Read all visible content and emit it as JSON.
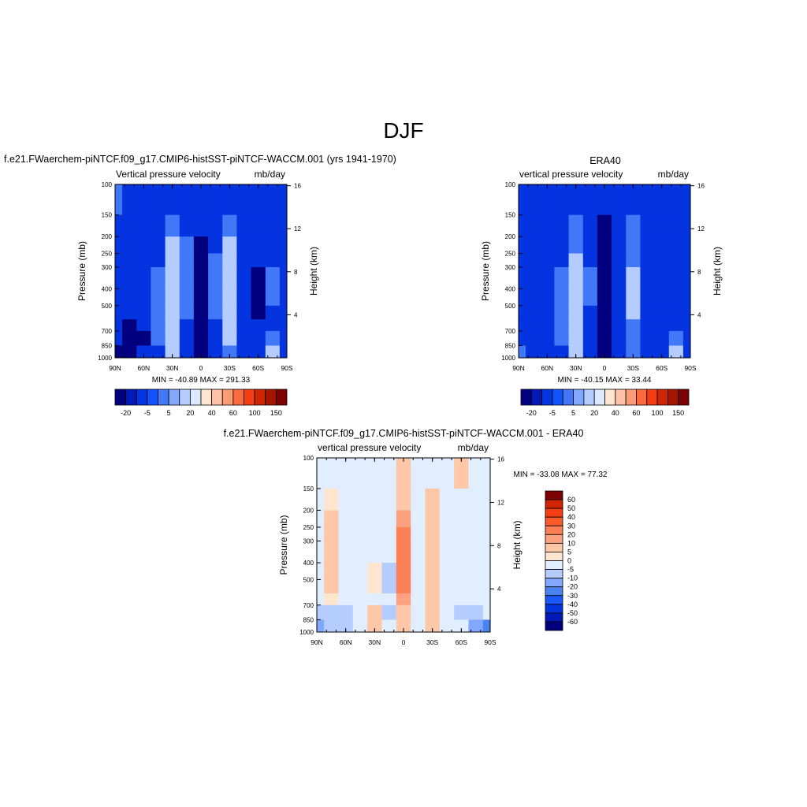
{
  "figure": {
    "season": "DJF"
  },
  "chart_data": [
    {
      "type": "heatmap",
      "title": "f.e21.FWaerchem-piNTCF.f09_g17.CMIP6-histSST-piNTCF-WACCM.001 (yrs 1941-1970)",
      "left_label": "Vertical pressure velocity",
      "right_label": "mb/day",
      "xlabel": "",
      "ylabel": "Pressure (mb)",
      "ylabel_right": "Height (km)",
      "x_ticks": [
        "90N",
        "60N",
        "30N",
        "0",
        "30S",
        "60S",
        "90S"
      ],
      "y_ticks": [
        "100",
        "150",
        "200",
        "250",
        "300",
        "400",
        "500",
        "700",
        "850",
        "1000"
      ],
      "y_right_ticks": [
        "16",
        "12",
        "8",
        "4"
      ],
      "stats": "MIN = -40.89  MAX = 291.33",
      "colorbar": {
        "levels": [
          "-20",
          "-5",
          "5",
          "20",
          "40",
          "60",
          "100",
          "150"
        ],
        "colors": [
          "#02007f",
          "#0019b7",
          "#0433e0",
          "#1352ff",
          "#4078f7",
          "#82a7ff",
          "#b4ccff",
          "#dceaff",
          "#fde5d0",
          "#fdc2a5",
          "#fc9c72",
          "#fb6a3f",
          "#f23e12",
          "#cf2505",
          "#a61500",
          "#7f0202"
        ]
      },
      "field_columns": [
        {
          "lat": 90,
          "levels": [
            "-5",
            "-10",
            "-10",
            "-10",
            "-10",
            "-10",
            "-10",
            "-10",
            "-20",
            "-30",
            "-30"
          ]
        },
        {
          "lat": 75,
          "levels": [
            "-10",
            "-10",
            "-10",
            "-20",
            "-20",
            "-20",
            "-20",
            "-30",
            "-40",
            "-30",
            "-5"
          ]
        },
        {
          "lat": 60,
          "levels": [
            "-10",
            "-10",
            "-10",
            "-10",
            "-10",
            "-10",
            "-10",
            "-20",
            "-30",
            "-20",
            "-10"
          ]
        },
        {
          "lat": 45,
          "levels": [
            "-10",
            "-10",
            "-10",
            "-10",
            "-5",
            "-5",
            "-5",
            "-5",
            "-5",
            "-10",
            "-10"
          ]
        },
        {
          "lat": 30,
          "levels": [
            "-10",
            "-5",
            "5",
            "10",
            "15",
            "15",
            "15",
            "10",
            "10",
            "5",
            "-5"
          ]
        },
        {
          "lat": 15,
          "levels": [
            "-10",
            "-10",
            "-5",
            "-5",
            "0",
            "0",
            "-5",
            "-10",
            "-20",
            "-20",
            "-10"
          ]
        },
        {
          "lat": 0,
          "levels": [
            "-10",
            "-20",
            "-30",
            "-40",
            "-40",
            "-40",
            "-40",
            "-40",
            "-40",
            "-40",
            "-30"
          ]
        },
        {
          "lat": -15,
          "levels": [
            "-10",
            "-10",
            "-10",
            "-5",
            "-5",
            "-5",
            "-5",
            "-10",
            "-10",
            "-10",
            "-10"
          ]
        },
        {
          "lat": -30,
          "levels": [
            "-10",
            "-5",
            "5",
            "5",
            "5",
            "5",
            "5",
            "5",
            "5",
            "0",
            "-5"
          ]
        },
        {
          "lat": -45,
          "levels": [
            "-10",
            "-10",
            "-10",
            "-20",
            "-20",
            "-20",
            "-20",
            "-20",
            "-20",
            "-20",
            "-10"
          ]
        },
        {
          "lat": -60,
          "levels": [
            "-10",
            "-10",
            "-10",
            "-20",
            "-30",
            "-30",
            "-30",
            "-20",
            "-20",
            "-10",
            "-5"
          ]
        },
        {
          "lat": -75,
          "levels": [
            "-10",
            "-10",
            "-10",
            "-10",
            "-5",
            "-5",
            "-10",
            "-10",
            "-5",
            "5",
            "10"
          ]
        },
        {
          "lat": -90,
          "levels": [
            "-10",
            "-10",
            "-10",
            "-10",
            "-10",
            "-10",
            "-10",
            "-10",
            "-20",
            "-20",
            "-10"
          ]
        }
      ]
    },
    {
      "type": "heatmap",
      "title": "ERA40",
      "left_label": "vertical pressure velocity",
      "right_label": "mb/day",
      "xlabel": "",
      "ylabel": "Pressure (mb)",
      "ylabel_right": "Height (km)",
      "x_ticks": [
        "90N",
        "60N",
        "30N",
        "0",
        "30S",
        "60S",
        "90S"
      ],
      "y_ticks": [
        "100",
        "150",
        "200",
        "250",
        "300",
        "400",
        "500",
        "700",
        "850",
        "1000"
      ],
      "y_right_ticks": [
        "16",
        "12",
        "8",
        "4"
      ],
      "stats": "MIN = -40.15  MAX =  33.44",
      "colorbar": {
        "levels": [
          "-20",
          "-5",
          "5",
          "20",
          "40",
          "60",
          "100",
          "150"
        ],
        "colors": [
          "#02007f",
          "#0019b7",
          "#0433e0",
          "#1352ff",
          "#4078f7",
          "#82a7ff",
          "#b4ccff",
          "#dceaff",
          "#fde5d0",
          "#fdc2a5",
          "#fc9c72",
          "#fb6a3f",
          "#f23e12",
          "#cf2505",
          "#a61500",
          "#7f0202"
        ]
      },
      "field_columns": [
        {
          "lat": 90,
          "levels": [
            "-10",
            "-10",
            "-10",
            "-10",
            "-10",
            "-10",
            "-10",
            "-10",
            "-10",
            "-5",
            "-5"
          ]
        },
        {
          "lat": 75,
          "levels": [
            "-10",
            "-20",
            "-20",
            "-20",
            "-20",
            "-20",
            "-20",
            "-20",
            "-20",
            "-20",
            "-10"
          ]
        },
        {
          "lat": 60,
          "levels": [
            "-10",
            "-10",
            "-10",
            "-10",
            "-10",
            "-10",
            "-10",
            "-10",
            "-20",
            "-10",
            "-5"
          ]
        },
        {
          "lat": 45,
          "levels": [
            "-10",
            "-10",
            "-10",
            "-10",
            "-5",
            "-5",
            "-5",
            "-5",
            "-5",
            "-10",
            "-10"
          ]
        },
        {
          "lat": 30,
          "levels": [
            "-10",
            "-5",
            "0",
            "10",
            "15",
            "15",
            "15",
            "10",
            "10",
            "5",
            "-5"
          ]
        },
        {
          "lat": 15,
          "levels": [
            "-10",
            "-10",
            "-10",
            "-10",
            "-5",
            "-5",
            "-10",
            "-10",
            "-20",
            "-20",
            "-10"
          ]
        },
        {
          "lat": 0,
          "levels": [
            "-20",
            "-30",
            "-40",
            "-40",
            "-40",
            "-40",
            "-40",
            "-40",
            "-40",
            "-40",
            "-30"
          ]
        },
        {
          "lat": -15,
          "levels": [
            "-10",
            "-10",
            "-10",
            "-10",
            "-10",
            "-10",
            "-10",
            "-10",
            "-20",
            "-10",
            "-10"
          ]
        },
        {
          "lat": -30,
          "levels": [
            "-10",
            "-5",
            "-5",
            "0",
            "5",
            "5",
            "5",
            "0",
            "0",
            "-5",
            "-5"
          ]
        },
        {
          "lat": -45,
          "levels": [
            "-10",
            "-10",
            "-10",
            "-10",
            "-10",
            "-10",
            "-10",
            "-10",
            "-20",
            "-20",
            "-10"
          ]
        },
        {
          "lat": -60,
          "levels": [
            "-10",
            "-10",
            "-10",
            "-10",
            "-10",
            "-10",
            "-10",
            "-10",
            "-10",
            "-10",
            "-5"
          ]
        },
        {
          "lat": -75,
          "levels": [
            "-10",
            "-10",
            "-10",
            "-10",
            "-10",
            "-10",
            "-10",
            "-10",
            "-5",
            "5",
            "10"
          ]
        },
        {
          "lat": -90,
          "levels": [
            "-10",
            "-10",
            "-10",
            "-10",
            "-10",
            "-10",
            "-10",
            "-10",
            "-10",
            "-10",
            "-10"
          ]
        }
      ]
    },
    {
      "type": "heatmap",
      "title": "f.e21.FWaerchem-piNTCF.f09_g17.CMIP6-histSST-piNTCF-WACCM.001 - ERA40",
      "left_label": "vertical pressure velocity",
      "right_label": "mb/day",
      "xlabel": "",
      "ylabel": "Pressure (mb)",
      "ylabel_right": "Height (km)",
      "x_ticks": [
        "90N",
        "60N",
        "30N",
        "0",
        "30S",
        "60S",
        "90S"
      ],
      "y_ticks": [
        "100",
        "150",
        "200",
        "250",
        "300",
        "400",
        "500",
        "700",
        "850",
        "1000"
      ],
      "y_right_ticks": [
        "16",
        "12",
        "8",
        "4"
      ],
      "stats": "MIN = -33.08  MAX =  77.32",
      "colorbar": {
        "levels": [
          "60",
          "50",
          "40",
          "30",
          "20",
          "10",
          "5",
          "0",
          "-5",
          "-10",
          "-20",
          "-30",
          "-40",
          "-50",
          "-60"
        ],
        "colors": [
          "#7f0202",
          "#cf2505",
          "#f23e12",
          "#fb5a2a",
          "#fc7f55",
          "#fca17f",
          "#fdc7a8",
          "#fde5d0",
          "#e0eeff",
          "#b4ccff",
          "#82a7ff",
          "#4b82f2",
          "#1a58ff",
          "#0433e0",
          "#0019b7",
          "#02007f"
        ]
      },
      "field_columns": [
        {
          "lat": 90,
          "levels": [
            "-5",
            "-5",
            "-5",
            "-5",
            "-5",
            "-5",
            "-5",
            "-5",
            "-10",
            "-20",
            "-10"
          ]
        },
        {
          "lat": 75,
          "levels": [
            "-5",
            "0",
            "5",
            "5",
            "5",
            "5",
            "5",
            "0",
            "-10",
            "-10",
            "-5"
          ]
        },
        {
          "lat": 60,
          "levels": [
            "-5",
            "-5",
            "-5",
            "-5",
            "-5",
            "-5",
            "-5",
            "-5",
            "-10",
            "-10",
            "-5"
          ]
        },
        {
          "lat": 45,
          "levels": [
            "-5",
            "-5",
            "-5",
            "-5",
            "-5",
            "-5",
            "-5",
            "-5",
            "-5",
            "-5",
            "-5"
          ]
        },
        {
          "lat": 30,
          "levels": [
            "-5",
            "-5",
            "-5",
            "-5",
            "-5",
            "0",
            "0",
            "-5",
            "5",
            "5",
            "0"
          ]
        },
        {
          "lat": 15,
          "levels": [
            "-5",
            "-5",
            "-5",
            "-5",
            "-5",
            "-10",
            "-10",
            "-5",
            "-10",
            "-5",
            "-5"
          ]
        },
        {
          "lat": 0,
          "levels": [
            "5",
            "5",
            "10",
            "20",
            "20",
            "20",
            "20",
            "10",
            "5",
            "5",
            "5"
          ]
        },
        {
          "lat": -15,
          "levels": [
            "-5",
            "-5",
            "-5",
            "-5",
            "-5",
            "-5",
            "-5",
            "-5",
            "-5",
            "-5",
            "-5"
          ]
        },
        {
          "lat": -30,
          "levels": [
            "-5",
            "5",
            "5",
            "5",
            "5",
            "5",
            "5",
            "5",
            "5",
            "5",
            "5"
          ]
        },
        {
          "lat": -45,
          "levels": [
            "-5",
            "-5",
            "-5",
            "-5",
            "-5",
            "-5",
            "-5",
            "-5",
            "-5",
            "-5",
            "-5"
          ]
        },
        {
          "lat": -60,
          "levels": [
            "5",
            "-5",
            "-5",
            "-5",
            "-5",
            "-5",
            "-5",
            "-5",
            "-10",
            "-5",
            "-5"
          ]
        },
        {
          "lat": -75,
          "levels": [
            "-5",
            "-5",
            "-5",
            "-5",
            "-5",
            "-5",
            "-5",
            "-5",
            "-10",
            "-20",
            "-10"
          ]
        },
        {
          "lat": -90,
          "levels": [
            "-5",
            "-5",
            "-5",
            "-5",
            "-5",
            "-5",
            "-5",
            "-5",
            "-5",
            "-30",
            "-10"
          ]
        }
      ]
    }
  ]
}
